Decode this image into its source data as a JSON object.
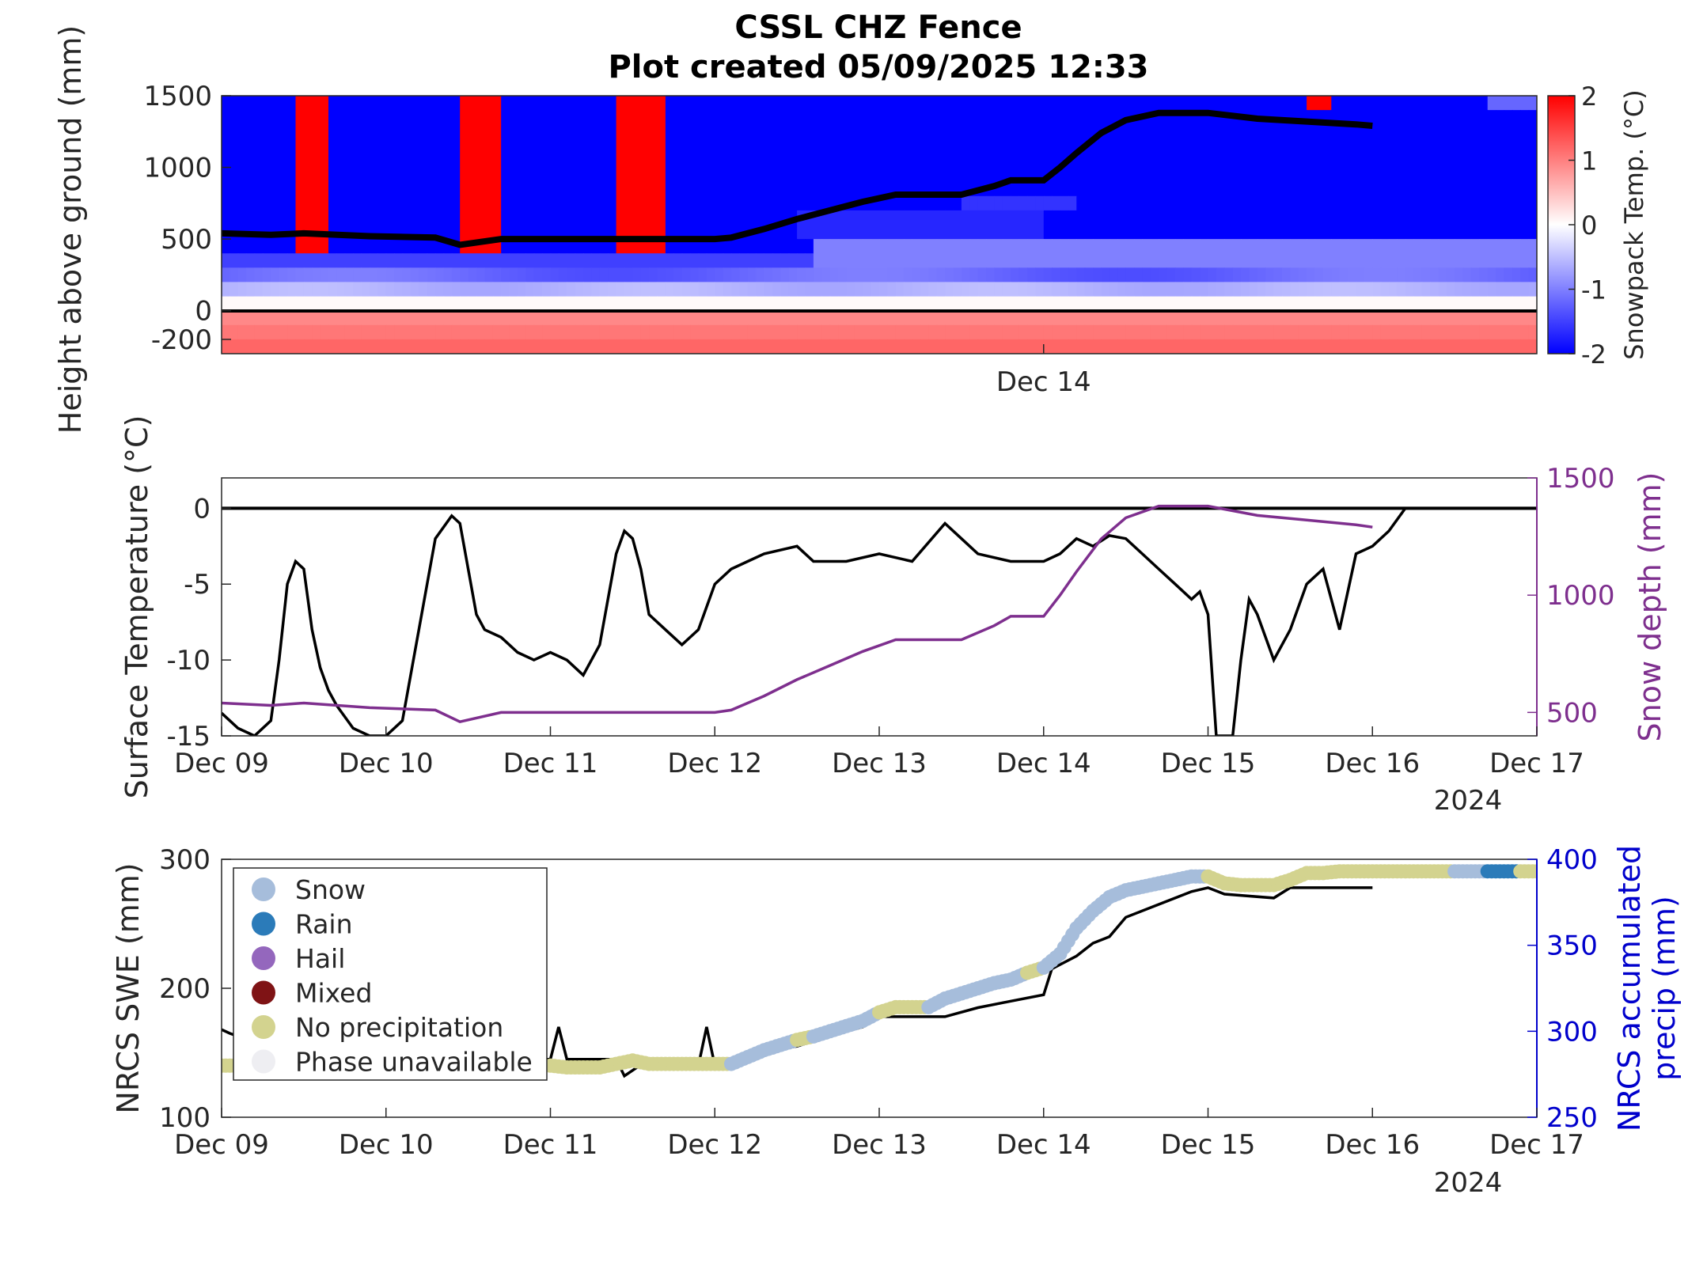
{
  "figure": {
    "title_line1": "CSSL CHZ Fence",
    "title_line2": "Plot created 05/09/2025 12:33"
  },
  "colors": {
    "axis": "#262626",
    "snow_depth": "#7e2f8e",
    "precip_axis": "#0000cc",
    "swe_line": "#000000",
    "warm": "#ff0000",
    "cold": "#0000ff"
  },
  "chart_data": [
    {
      "type": "heatmap",
      "name": "snowpack-temperature",
      "ylabel": "Height above ground (mm)",
      "y_ticks": [
        1500,
        1000,
        500,
        0,
        -200
      ],
      "y_tick_labels": [
        "1500",
        "1000",
        "500",
        "0",
        "-200"
      ],
      "ylim": [
        -300,
        1500
      ],
      "x_tick_labels": [
        "Dec 14"
      ],
      "colorbar": {
        "label": "Snowpack Temp. (°C)",
        "range": [
          -2,
          2
        ],
        "ticks": [
          "2",
          "1",
          "0",
          "-1",
          "-2"
        ]
      },
      "sensor_heights_mm": [
        1400,
        1300,
        1200,
        1100,
        1000,
        900,
        800,
        700,
        600,
        500,
        400,
        300,
        200,
        100,
        0,
        -100,
        -200,
        -300
      ],
      "warm_events": [
        {
          "start_day": 0.45,
          "end_day": 0.65,
          "top_mm": 1500,
          "bottom_mm": 400,
          "temp_c": 2
        },
        {
          "start_day": 1.43,
          "end_day": 1.7,
          "top_mm": 1500,
          "bottom_mm": 400,
          "temp_c": 2
        },
        {
          "start_day": 2.42,
          "end_day": 2.7,
          "top_mm": 1500,
          "bottom_mm": 400,
          "temp_c": 2
        },
        {
          "start_day": 6.58,
          "end_day": 6.75,
          "top_mm": 1500,
          "bottom_mm": 1400,
          "temp_c": 2
        }
      ],
      "snow_depth_overlay": {
        "x_days": [
          0,
          0.3,
          0.5,
          0.9,
          1.3,
          1.45,
          1.7,
          2.0,
          2.55,
          3.0,
          3.1,
          3.3,
          3.5,
          3.7,
          3.9,
          4.1,
          4.3,
          4.5,
          4.7,
          4.8,
          5.0,
          5.1,
          5.2,
          5.35,
          5.5,
          5.7,
          5.85,
          6.0,
          6.3,
          6.6,
          6.9,
          7.0
        ],
        "y_mm": [
          540,
          530,
          540,
          520,
          510,
          460,
          500,
          500,
          500,
          500,
          510,
          570,
          640,
          700,
          760,
          810,
          810,
          810,
          870,
          910,
          910,
          1000,
          1100,
          1240,
          1330,
          1380,
          1380,
          1380,
          1340,
          1320,
          1300,
          1290
        ]
      }
    },
    {
      "type": "line",
      "name": "surface-temperature",
      "ylabel": "Surface Temperature (°C)",
      "y2label": "Snow depth (mm)",
      "ylim": [
        -15,
        2
      ],
      "y_ticks": [
        "0",
        "-5",
        "-10",
        "-15"
      ],
      "y2lim": [
        400,
        1500
      ],
      "y2_ticks": [
        "1500",
        "1000",
        "500"
      ],
      "x_tick_labels": [
        "Dec 09",
        "Dec 10",
        "Dec 11",
        "Dec 12",
        "Dec 13",
        "Dec 14",
        "Dec 15",
        "Dec 16",
        "Dec 17"
      ],
      "x_year_label": "2024",
      "series": [
        {
          "axis": "left",
          "x_days": [
            0,
            0.1,
            0.2,
            0.3,
            0.35,
            0.4,
            0.45,
            0.5,
            0.55,
            0.6,
            0.65,
            0.7,
            0.8,
            0.9,
            1.0,
            1.1,
            1.2,
            1.3,
            1.4,
            1.45,
            1.5,
            1.55,
            1.6,
            1.7,
            1.8,
            1.9,
            2.0,
            2.1,
            2.2,
            2.3,
            2.4,
            2.45,
            2.5,
            2.55,
            2.6,
            2.7,
            2.8,
            2.9,
            3.0,
            3.1,
            3.2,
            3.3,
            3.5,
            3.6,
            3.8,
            4.0,
            4.2,
            4.4,
            4.5,
            4.6,
            4.8,
            5.0,
            5.1,
            5.2,
            5.3,
            5.4,
            5.5,
            5.6,
            5.7,
            5.8,
            5.9,
            5.95,
            6.0,
            6.05,
            6.15,
            6.2,
            6.25,
            6.3,
            6.4,
            6.5,
            6.6,
            6.7,
            6.8,
            6.9,
            7.0,
            7.1,
            7.2,
            7.3,
            7.4,
            7.5,
            7.6,
            7.8,
            8.0
          ],
          "values": [
            -13.5,
            -14.5,
            -15,
            -14,
            -10,
            -5,
            -3.5,
            -4,
            -8,
            -10.5,
            -12,
            -13,
            -14.5,
            -15,
            -15,
            -14,
            -8,
            -2,
            -0.5,
            -1,
            -4,
            -7,
            -8,
            -8.5,
            -9.5,
            -10,
            -9.5,
            -10,
            -11,
            -9,
            -3,
            -1.5,
            -2,
            -4,
            -7,
            -8,
            -9,
            -8,
            -5,
            -4,
            -3.5,
            -3,
            -2.5,
            -3.5,
            -3.5,
            -3,
            -3.5,
            -1,
            -2,
            -3,
            -3.5,
            -3.5,
            -3,
            -2,
            -2.5,
            -1.8,
            -2,
            -3,
            -4,
            -5,
            -6,
            -5.5,
            -7,
            -15,
            -15,
            -10,
            -6,
            -7,
            -10,
            -8,
            -5,
            -4,
            -8,
            -3,
            -2.5,
            -1.5,
            0,
            0,
            0,
            0,
            0,
            0,
            0
          ]
        },
        {
          "axis": "right",
          "name": "Snow depth",
          "x_days": [
            0,
            0.3,
            0.5,
            0.9,
            1.3,
            1.45,
            1.7,
            2.0,
            2.55,
            3.0,
            3.1,
            3.3,
            3.5,
            3.7,
            3.9,
            4.1,
            4.3,
            4.5,
            4.7,
            4.8,
            5.0,
            5.1,
            5.2,
            5.35,
            5.5,
            5.7,
            5.85,
            6.0,
            6.3,
            6.6,
            6.9,
            7.0
          ],
          "values": [
            540,
            530,
            540,
            520,
            510,
            460,
            500,
            500,
            500,
            500,
            510,
            570,
            640,
            700,
            760,
            810,
            810,
            810,
            870,
            910,
            910,
            1000,
            1100,
            1240,
            1330,
            1380,
            1380,
            1380,
            1340,
            1320,
            1300,
            1290
          ]
        }
      ],
      "zero_line": 0
    },
    {
      "type": "scatter",
      "name": "swe-and-precip",
      "ylabel": "NRCS SWE (mm)",
      "y2label_line1": "NRCS accumulated",
      "y2label_line2": "precip (mm)",
      "ylim": [
        100,
        300
      ],
      "y_ticks": [
        "300",
        "200",
        "100"
      ],
      "y2lim": [
        250,
        400
      ],
      "y2_ticks": [
        "400",
        "350",
        "300",
        "250"
      ],
      "x_tick_labels": [
        "Dec 09",
        "Dec 10",
        "Dec 11",
        "Dec 12",
        "Dec 13",
        "Dec 14",
        "Dec 15",
        "Dec 16",
        "Dec 17"
      ],
      "x_year_label": "2024",
      "legend": {
        "position": "top-left",
        "entries": [
          {
            "label": "Snow",
            "color": "#a6bddb"
          },
          {
            "label": "Rain",
            "color": "#2b7bb9"
          },
          {
            "label": "Hail",
            "color": "#9467bd"
          },
          {
            "label": "Mixed",
            "color": "#7f1315"
          },
          {
            "label": "No precipitation",
            "color": "#d3d38f"
          },
          {
            "label": "Phase unavailable",
            "color": "#eeeef2"
          }
        ]
      },
      "swe_line": {
        "x_days": [
          0,
          0.05,
          0.5,
          1.0,
          2.0,
          2.05,
          2.1,
          2.4,
          2.45,
          2.6,
          2.9,
          2.95,
          3.0,
          3.2,
          3.25,
          3.5,
          3.7,
          3.9,
          4.0,
          4.4,
          4.6,
          4.8,
          5.0,
          5.05,
          5.2,
          5.3,
          5.4,
          5.5,
          5.7,
          5.8,
          5.9,
          6.0,
          6.1,
          6.4,
          6.5,
          7.0
        ],
        "values": [
          168,
          165,
          145,
          145,
          145,
          170,
          145,
          145,
          132,
          145,
          140,
          170,
          140,
          148,
          150,
          155,
          163,
          170,
          178,
          178,
          185,
          190,
          195,
          215,
          225,
          235,
          240,
          255,
          265,
          270,
          275,
          278,
          273,
          270,
          278,
          278
        ]
      },
      "precip_points": {
        "x_days": [
          0,
          0.1,
          0.2,
          2.0,
          2.1,
          2.2,
          2.3,
          2.4,
          2.5,
          2.6,
          2.7,
          2.8,
          2.9,
          3.0,
          3.1,
          3.2,
          3.3,
          3.4,
          3.5,
          3.6,
          3.7,
          3.8,
          3.9,
          4.0,
          4.1,
          4.2,
          4.3,
          4.4,
          4.5,
          4.6,
          4.7,
          4.8,
          4.9,
          5.0,
          5.1,
          5.2,
          5.3,
          5.4,
          5.5,
          5.6,
          5.7,
          5.8,
          5.9,
          6.0,
          6.1,
          6.2,
          6.3,
          6.4,
          6.5,
          6.6,
          6.7,
          6.8,
          6.9,
          7.0,
          7.1,
          7.2,
          7.3,
          7.4,
          7.5,
          7.6,
          7.7,
          7.8,
          7.9,
          8.0
        ],
        "values": [
          280,
          280,
          280,
          280,
          279,
          279,
          279,
          281,
          283,
          281,
          281,
          281,
          281,
          281,
          281,
          285,
          289,
          292,
          295,
          297,
          300,
          303,
          306,
          311,
          314,
          314,
          314,
          319,
          322,
          325,
          328,
          330,
          334,
          337,
          345,
          360,
          370,
          378,
          382,
          384,
          386,
          388,
          390,
          390,
          386,
          385,
          385,
          385,
          388,
          392,
          392,
          393,
          393,
          393,
          393,
          393,
          393,
          393,
          393,
          393,
          393,
          393,
          393,
          393
        ],
        "phases": [
          "none",
          "none",
          "none",
          "none",
          "none",
          "none",
          "none",
          "none",
          "none",
          "none",
          "none",
          "none",
          "none",
          "none",
          "snow",
          "snow",
          "snow",
          "snow",
          "none",
          "snow",
          "snow",
          "snow",
          "snow",
          "none",
          "none",
          "none",
          "snow",
          "snow",
          "snow",
          "snow",
          "snow",
          "snow",
          "none",
          "snow",
          "snow",
          "snow",
          "snow",
          "snow",
          "snow",
          "snow",
          "snow",
          "snow",
          "snow",
          "none",
          "none",
          "none",
          "none",
          "none",
          "none",
          "none",
          "none",
          "none",
          "none",
          "none",
          "none",
          "none",
          "none",
          "none",
          "snow",
          "snow",
          "rain",
          "rain",
          "none",
          "none"
        ]
      }
    }
  ]
}
